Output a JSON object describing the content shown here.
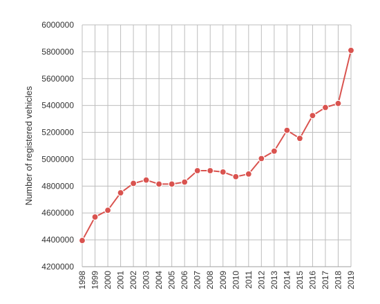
{
  "chart_data": {
    "type": "line",
    "title": "",
    "xlabel": "",
    "ylabel": "Number of registered vehicles",
    "ylim": [
      4200000,
      6000000
    ],
    "yticks": [
      4200000,
      4400000,
      4600000,
      4800000,
      5000000,
      5200000,
      5400000,
      5600000,
      5800000,
      6000000
    ],
    "ytick_labels": [
      "4200000",
      "4400000",
      "4600000",
      "4800000",
      "5000000",
      "5200000",
      "5400000",
      "5600000",
      "5800000",
      "6000000"
    ],
    "grid": true,
    "categories": [
      "1998",
      "1999",
      "2000",
      "2001",
      "2002",
      "2003",
      "2004",
      "2005",
      "2006",
      "2007",
      "2008",
      "2009",
      "2010",
      "2011",
      "2012",
      "2013",
      "2014",
      "2015",
      "2016",
      "2017",
      "2018",
      "2019"
    ],
    "series": [
      {
        "color": "#d9534f",
        "values": [
          4395000,
          4570000,
          4620000,
          4750000,
          4820000,
          4845000,
          4815000,
          4815000,
          4830000,
          4915000,
          4915000,
          4905000,
          4870000,
          4890000,
          5005000,
          5060000,
          5215000,
          5155000,
          5325000,
          5385000,
          5415000,
          5810000
        ]
      }
    ]
  }
}
